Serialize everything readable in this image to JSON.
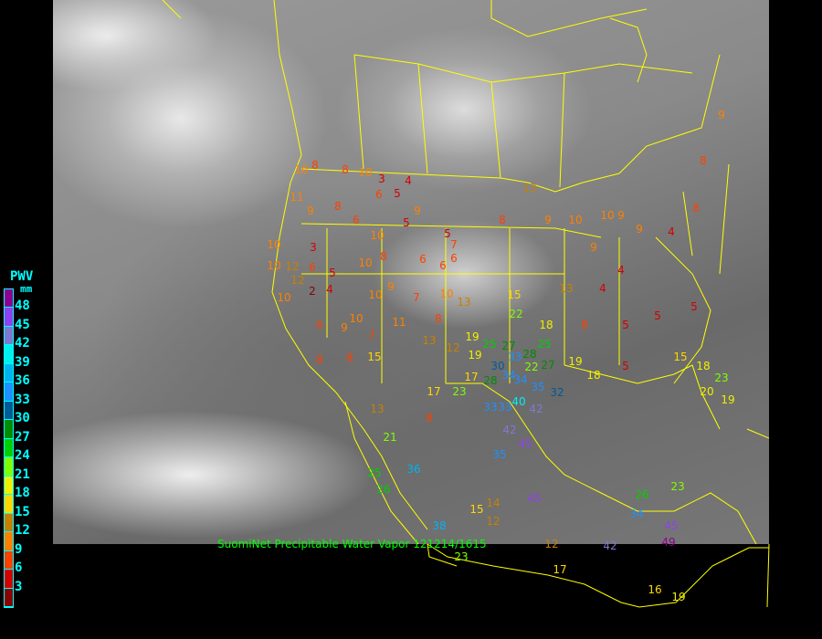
{
  "caption": "SuomiNet Precipitable Water Vapor 121214/1615",
  "legend": {
    "title": "PWV",
    "unit": "mm",
    "ticks": [
      "48",
      "45",
      "42",
      "39",
      "36",
      "33",
      "30",
      "27",
      "24",
      "21",
      "18",
      "15",
      "12",
      "9",
      "6",
      "3"
    ],
    "colors_top_to_bottom": [
      "#900090",
      "#9040f0",
      "#8078d0",
      "#00f0f0",
      "#00b4f0",
      "#1e90ff",
      "#005a96",
      "#008c00",
      "#00d000",
      "#80ff00",
      "#f0f000",
      "#ffd700",
      "#c88000",
      "#ff8000",
      "#ff4000",
      "#d40000",
      "#8b0000"
    ]
  },
  "border_color": "#ffff00",
  "stations": [
    "8",
    "8",
    "10",
    "3",
    "4",
    "5",
    "6",
    "10",
    "11",
    "9",
    "8",
    "6",
    "10",
    "5",
    "9",
    "5",
    "7",
    "6",
    "6",
    "6",
    "8",
    "10",
    "3",
    "6",
    "5",
    "2",
    "4",
    "10",
    "10",
    "12",
    "12",
    "10",
    "6",
    "9",
    "10",
    "7",
    "15",
    "8",
    "8",
    "10",
    "9",
    "7",
    "10",
    "13",
    "8",
    "11",
    "13",
    "12",
    "19",
    "25",
    "27",
    "19",
    "30",
    "28",
    "34",
    "33",
    "28",
    "25",
    "22",
    "27",
    "34",
    "35",
    "32",
    "40",
    "42",
    "33",
    "33",
    "17",
    "23",
    "17",
    "15",
    "22",
    "18",
    "8",
    "13",
    "9",
    "10",
    "10",
    "9",
    "9",
    "9",
    "4",
    "4",
    "13",
    "8",
    "5",
    "5",
    "5",
    "4",
    "8",
    "8",
    "9",
    "19",
    "18",
    "5",
    "15",
    "18",
    "23",
    "19",
    "20",
    "13",
    "8",
    "21",
    "25",
    "26",
    "36",
    "35",
    "42",
    "45",
    "14",
    "15",
    "12",
    "45",
    "26",
    "23",
    "34",
    "45",
    "49",
    "42",
    "12",
    "38",
    "23",
    "17",
    "16",
    "19"
  ]
}
